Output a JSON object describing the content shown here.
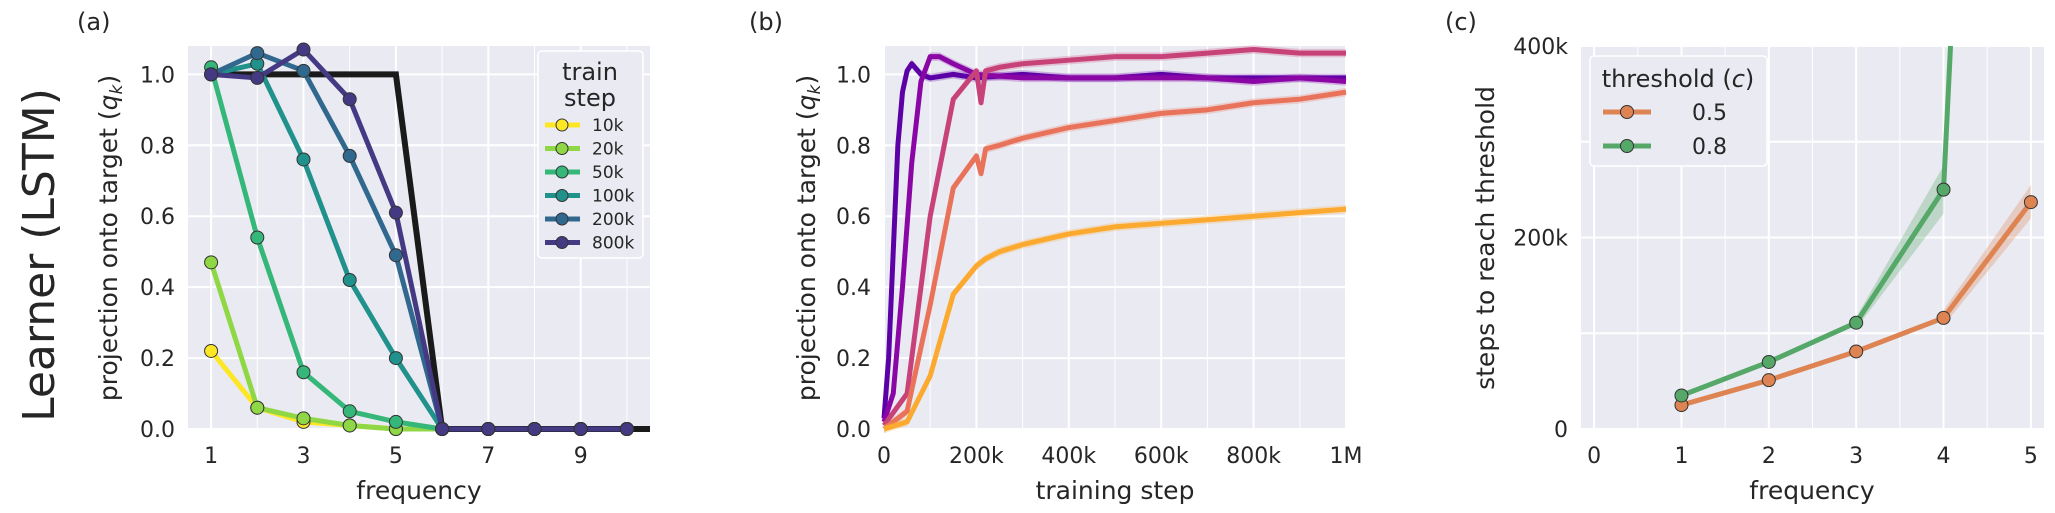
{
  "row_label": "Learner (LSTM)",
  "chart_data": [
    {
      "panel": "(a)",
      "type": "line",
      "xlabel": "frequency",
      "ylabel": "projection onto target (q_k)",
      "xlim": [
        0.5,
        10.5
      ],
      "ylim": [
        0.0,
        1.08
      ],
      "xticks": [
        "1",
        "3",
        "5",
        "7",
        "9"
      ],
      "yticks": [
        "0.0",
        "0.2",
        "0.4",
        "0.6",
        "0.8",
        "1.0"
      ],
      "grid": true,
      "legend": {
        "title_line1": "train",
        "title_line2": "step",
        "position": "top-right"
      },
      "x": [
        1,
        2,
        3,
        4,
        5,
        6,
        7,
        8,
        9,
        10
      ],
      "target": {
        "x": [
          1,
          5,
          6,
          10.5
        ],
        "y": [
          1.0,
          1.0,
          0.0,
          0.0
        ],
        "color": "#1a1a1a"
      },
      "series": [
        {
          "name": "10k",
          "color": "#fde725",
          "values": [
            0.22,
            0.06,
            0.02,
            0.01,
            0.0,
            0.0,
            0.0,
            0.0,
            0.0,
            0.0
          ]
        },
        {
          "name": "20k",
          "color": "#8fd744",
          "values": [
            0.47,
            0.06,
            0.03,
            0.01,
            0.0,
            0.0,
            0.0,
            0.0,
            0.0,
            0.0
          ]
        },
        {
          "name": "50k",
          "color": "#35b779",
          "values": [
            1.02,
            0.54,
            0.16,
            0.05,
            0.02,
            0.0,
            0.0,
            0.0,
            0.0,
            0.0
          ]
        },
        {
          "name": "100k",
          "color": "#21918c",
          "values": [
            1.0,
            1.03,
            0.76,
            0.42,
            0.2,
            0.0,
            0.0,
            0.0,
            0.0,
            0.0
          ]
        },
        {
          "name": "200k",
          "color": "#31688e",
          "values": [
            1.0,
            1.06,
            1.01,
            0.77,
            0.49,
            0.0,
            0.0,
            0.0,
            0.0,
            0.0
          ]
        },
        {
          "name": "800k",
          "color": "#443983",
          "values": [
            1.0,
            0.99,
            1.07,
            0.93,
            0.61,
            0.0,
            0.0,
            0.0,
            0.0,
            0.0
          ]
        }
      ]
    },
    {
      "panel": "(b)",
      "type": "line",
      "xlabel": "training step",
      "ylabel": "projection onto target (q_k)",
      "xlim": [
        0,
        1000000
      ],
      "ylim": [
        0.0,
        1.08
      ],
      "xticks": [
        {
          "value": 0,
          "label": "0"
        },
        {
          "value": 200000,
          "label": "200k"
        },
        {
          "value": 400000,
          "label": "400k"
        },
        {
          "value": 600000,
          "label": "600k"
        },
        {
          "value": 800000,
          "label": "800k"
        },
        {
          "value": 1000000,
          "label": "1M"
        }
      ],
      "yticks": [
        "0.0",
        "0.2",
        "0.4",
        "0.6",
        "0.8",
        "1.0"
      ],
      "grid": true,
      "series": [
        {
          "color": "#5c01a6",
          "x": [
            0,
            10000,
            20000,
            30000,
            40000,
            50000,
            60000,
            80000,
            100000,
            150000,
            200000,
            300000,
            400000,
            500000,
            600000,
            700000,
            800000,
            900000,
            1000000
          ],
          "values": [
            0.03,
            0.2,
            0.5,
            0.8,
            0.95,
            1.01,
            1.03,
            1.0,
            0.99,
            1.0,
            0.99,
            1.0,
            0.99,
            0.99,
            1.0,
            0.99,
            0.99,
            0.99,
            0.99
          ]
        },
        {
          "color": "#8a07a6",
          "x": [
            0,
            20000,
            40000,
            60000,
            80000,
            100000,
            120000,
            150000,
            200000,
            300000,
            400000,
            500000,
            600000,
            700000,
            800000,
            900000,
            1000000
          ],
          "values": [
            0.02,
            0.1,
            0.4,
            0.75,
            0.98,
            1.05,
            1.05,
            1.03,
            1.0,
            0.99,
            0.99,
            0.99,
            0.99,
            0.99,
            0.98,
            0.99,
            0.98
          ]
        },
        {
          "color": "#c8427a",
          "x": [
            0,
            50000,
            100000,
            150000,
            200000,
            210000,
            220000,
            250000,
            300000,
            400000,
            500000,
            600000,
            700000,
            800000,
            900000,
            1000000
          ],
          "values": [
            0.01,
            0.1,
            0.6,
            0.93,
            1.01,
            0.92,
            1.01,
            1.02,
            1.03,
            1.04,
            1.05,
            1.05,
            1.06,
            1.07,
            1.06,
            1.06
          ]
        },
        {
          "color": "#e8735a",
          "x": [
            0,
            50000,
            100000,
            150000,
            200000,
            210000,
            220000,
            250000,
            300000,
            400000,
            500000,
            600000,
            700000,
            800000,
            900000,
            1000000
          ],
          "values": [
            0.0,
            0.05,
            0.35,
            0.68,
            0.77,
            0.72,
            0.79,
            0.8,
            0.82,
            0.85,
            0.87,
            0.89,
            0.9,
            0.92,
            0.93,
            0.95
          ]
        },
        {
          "color": "#fba92f",
          "x": [
            0,
            50000,
            100000,
            150000,
            200000,
            220000,
            250000,
            300000,
            400000,
            500000,
            600000,
            700000,
            800000,
            900000,
            1000000
          ],
          "values": [
            0.0,
            0.02,
            0.15,
            0.38,
            0.46,
            0.48,
            0.5,
            0.52,
            0.55,
            0.57,
            0.58,
            0.59,
            0.6,
            0.61,
            0.62
          ]
        }
      ]
    },
    {
      "panel": "(c)",
      "type": "line",
      "xlabel": "frequency",
      "ylabel": "steps to reach threshold",
      "xlim": [
        -0.15,
        5.15
      ],
      "ylim": [
        0,
        400000
      ],
      "xticks": [
        "0",
        "1",
        "2",
        "3",
        "4",
        "5"
      ],
      "yticks": [
        {
          "value": 0,
          "label": "0"
        },
        {
          "value": 200000,
          "label": "200k"
        },
        {
          "value": 400000,
          "label": "400k"
        }
      ],
      "grid": true,
      "legend": {
        "title": "threshold (c)",
        "position": "top-left"
      },
      "series": [
        {
          "name": "0.5",
          "color": "#dd8452",
          "x": [
            1,
            2,
            3,
            4,
            5
          ],
          "values": [
            25000,
            51000,
            81000,
            116000,
            237000
          ]
        },
        {
          "name": "0.8",
          "color": "#55a868",
          "x": [
            1,
            2,
            3,
            4,
            4.08
          ],
          "values": [
            35000,
            70000,
            111000,
            250000,
            400000
          ]
        }
      ]
    }
  ]
}
